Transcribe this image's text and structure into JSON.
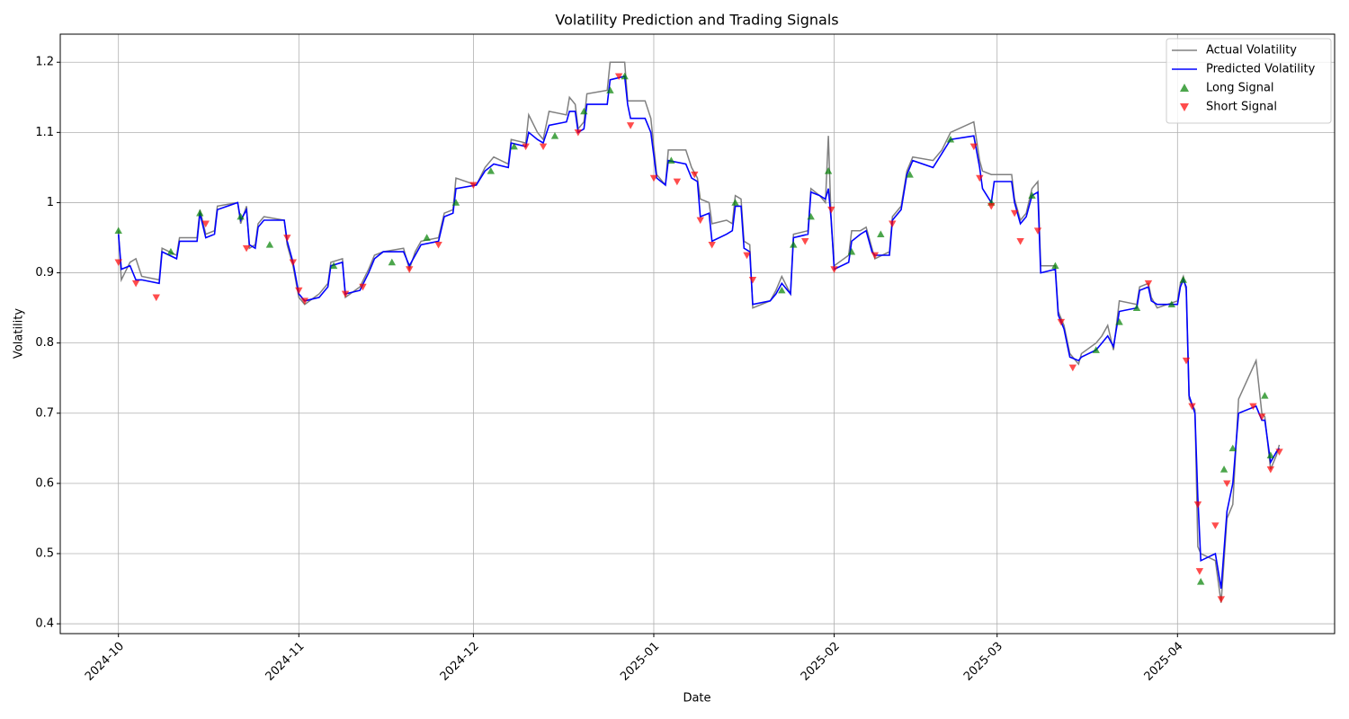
{
  "chart_data": {
    "type": "line",
    "title": "Volatility Prediction and Trading Signals",
    "x_label": "Date",
    "y_label": "Volatility",
    "xlim": [
      -10,
      209
    ],
    "ylim": [
      0.386,
      1.24
    ],
    "xticks": [
      {
        "value": 0,
        "label": "2024-10"
      },
      {
        "value": 31,
        "label": "2024-11"
      },
      {
        "value": 61,
        "label": "2024-12"
      },
      {
        "value": 92,
        "label": "2025-01"
      },
      {
        "value": 123,
        "label": "2025-02"
      },
      {
        "value": 151,
        "label": "2025-03"
      },
      {
        "value": 182,
        "label": "2025-04"
      }
    ],
    "yticks": [
      0.4,
      0.5,
      0.6,
      0.7,
      0.8,
      0.9,
      1.0,
      1.1,
      1.2
    ],
    "grid": true,
    "legend": "upper right",
    "series": [
      {
        "name": "Actual Volatility",
        "kind": "line",
        "color": "#808080",
        "x": [
          0,
          0.5,
          2,
          3,
          4,
          7,
          7.5,
          10,
          10.5,
          13.5,
          14,
          15,
          16.5,
          17,
          20.5,
          21,
          22,
          22.5,
          23.5,
          24,
          25,
          28.5,
          29,
          30,
          31,
          32,
          34.5,
          36,
          36.5,
          38.5,
          39,
          41.5,
          43,
          44,
          45.5,
          49,
          50,
          51,
          52,
          55,
          56,
          57.5,
          58,
          61.5,
          63,
          64.5,
          67,
          67.5,
          70,
          70.5,
          72,
          73,
          74,
          77,
          77.5,
          78.5,
          79,
          80,
          80.5,
          84,
          84.5,
          87,
          87.5,
          88,
          90.5,
          91.5,
          92.5,
          94,
          94.5,
          97.5,
          98.5,
          99.5,
          100,
          101.5,
          102,
          104.5,
          105.5,
          106,
          107,
          107.5,
          108.5,
          109,
          112,
          113,
          114,
          115.5,
          116,
          118.5,
          119,
          120.5,
          121.5,
          122,
          122.5,
          123,
          125.5,
          126,
          127.5,
          128.5,
          129.5,
          130,
          132.5,
          133,
          134.5,
          135.5,
          136.5,
          140,
          141.5,
          143,
          147,
          148,
          148.5,
          150,
          150.5,
          153.5,
          154,
          155,
          156,
          157,
          158,
          158.5,
          161,
          161.5,
          162.5,
          163.5,
          165,
          165.5,
          168,
          169,
          170,
          171,
          172,
          175,
          175.5,
          177,
          177.5,
          178.5,
          182,
          182.5,
          183,
          183.5,
          184,
          185,
          185.5,
          186,
          188.5,
          189.5,
          190.5,
          191.5,
          192.5,
          195.5,
          196.5,
          197,
          198,
          199,
          199.5
        ],
        "values": [
          0.96,
          0.89,
          0.915,
          0.92,
          0.895,
          0.89,
          0.935,
          0.925,
          0.95,
          0.95,
          0.99,
          0.955,
          0.96,
          0.995,
          1.0,
          0.97,
          0.995,
          0.935,
          0.94,
          0.97,
          0.98,
          0.975,
          0.94,
          0.91,
          0.865,
          0.855,
          0.87,
          0.885,
          0.915,
          0.92,
          0.865,
          0.88,
          0.905,
          0.925,
          0.93,
          0.935,
          0.905,
          0.93,
          0.945,
          0.95,
          0.985,
          0.99,
          1.035,
          1.025,
          1.05,
          1.065,
          1.055,
          1.09,
          1.085,
          1.125,
          1.1,
          1.09,
          1.13,
          1.125,
          1.15,
          1.14,
          1.105,
          1.115,
          1.155,
          1.16,
          1.2,
          1.2,
          1.145,
          1.145,
          1.145,
          1.12,
          1.04,
          1.025,
          1.075,
          1.075,
          1.05,
          1.035,
          1.005,
          1.0,
          0.97,
          0.975,
          0.97,
          1.01,
          1.005,
          0.945,
          0.94,
          0.85,
          0.86,
          0.875,
          0.895,
          0.87,
          0.955,
          0.96,
          1.02,
          1.01,
          1.0,
          1.095,
          0.97,
          0.91,
          0.925,
          0.96,
          0.96,
          0.965,
          0.935,
          0.92,
          0.93,
          0.98,
          0.995,
          1.045,
          1.065,
          1.06,
          1.075,
          1.1,
          1.115,
          1.06,
          1.045,
          1.04,
          1.04,
          1.04,
          1.005,
          0.975,
          0.985,
          1.02,
          1.03,
          0.91,
          0.91,
          0.845,
          0.825,
          0.785,
          0.77,
          0.785,
          0.8,
          0.81,
          0.825,
          0.79,
          0.86,
          0.855,
          0.88,
          0.885,
          0.865,
          0.85,
          0.86,
          0.885,
          0.895,
          0.875,
          0.72,
          0.705,
          0.51,
          0.5,
          0.49,
          0.43,
          0.55,
          0.57,
          0.72,
          0.775,
          0.7,
          0.695,
          0.62,
          0.64,
          0.655
        ]
      },
      {
        "name": "Predicted Volatility",
        "kind": "line",
        "color": "#0000ff",
        "x": [
          0,
          0.5,
          2,
          3,
          4,
          7,
          7.5,
          10,
          10.5,
          13.5,
          14,
          15,
          16.5,
          17,
          20.5,
          21,
          22,
          22.5,
          23.5,
          24,
          25,
          28.5,
          29,
          30,
          31,
          32,
          34.5,
          36,
          36.5,
          38.5,
          39,
          41.5,
          43,
          44,
          45.5,
          49,
          50,
          51,
          52,
          55,
          56,
          57.5,
          58,
          61.5,
          63,
          64.5,
          67,
          67.5,
          70,
          70.5,
          72,
          73,
          74,
          77,
          77.5,
          78.5,
          79,
          80,
          80.5,
          84,
          84.5,
          87,
          87.5,
          88,
          90.5,
          91.5,
          92.5,
          94,
          94.5,
          97.5,
          98.5,
          99.5,
          100,
          101.5,
          102,
          104.5,
          105.5,
          106,
          107,
          107.5,
          108.5,
          109,
          112,
          113,
          114,
          115.5,
          116,
          118.5,
          119,
          120.5,
          121.5,
          122,
          122.5,
          123,
          125.5,
          126,
          127.5,
          128.5,
          129.5,
          130,
          132.5,
          133,
          134.5,
          135.5,
          136.5,
          140,
          141.5,
          143,
          147,
          148,
          148.5,
          150,
          150.5,
          153.5,
          154,
          155,
          156,
          157,
          158,
          158.5,
          161,
          161.5,
          162.5,
          163.5,
          165,
          165.5,
          168,
          169,
          170,
          171,
          172,
          175,
          175.5,
          177,
          177.5,
          178.5,
          182,
          182.5,
          183,
          183.5,
          184,
          185,
          185.5,
          186,
          188.5,
          189.5,
          190.5,
          191.5,
          192.5,
          195.5,
          196.5,
          197,
          198,
          199,
          199.5
        ],
        "values": [
          0.955,
          0.905,
          0.91,
          0.89,
          0.89,
          0.885,
          0.93,
          0.92,
          0.945,
          0.945,
          0.985,
          0.95,
          0.955,
          0.99,
          1.0,
          0.975,
          0.99,
          0.94,
          0.935,
          0.965,
          0.975,
          0.975,
          0.945,
          0.915,
          0.87,
          0.86,
          0.865,
          0.88,
          0.91,
          0.915,
          0.87,
          0.875,
          0.9,
          0.92,
          0.93,
          0.93,
          0.91,
          0.925,
          0.94,
          0.945,
          0.98,
          0.985,
          1.02,
          1.025,
          1.045,
          1.055,
          1.05,
          1.085,
          1.08,
          1.1,
          1.09,
          1.085,
          1.11,
          1.115,
          1.13,
          1.13,
          1.1,
          1.105,
          1.14,
          1.14,
          1.175,
          1.18,
          1.14,
          1.12,
          1.12,
          1.1,
          1.035,
          1.025,
          1.06,
          1.055,
          1.035,
          1.03,
          0.98,
          0.985,
          0.945,
          0.955,
          0.96,
          0.995,
          0.995,
          0.935,
          0.93,
          0.855,
          0.86,
          0.87,
          0.885,
          0.87,
          0.95,
          0.955,
          1.015,
          1.01,
          1.005,
          1.02,
          0.975,
          0.905,
          0.915,
          0.945,
          0.955,
          0.96,
          0.93,
          0.925,
          0.925,
          0.975,
          0.99,
          1.04,
          1.06,
          1.05,
          1.07,
          1.09,
          1.095,
          1.05,
          1.02,
          1.0,
          1.03,
          1.03,
          1.0,
          0.97,
          0.98,
          1.01,
          1.015,
          0.9,
          0.905,
          0.84,
          0.82,
          0.78,
          0.775,
          0.78,
          0.79,
          0.8,
          0.81,
          0.795,
          0.845,
          0.85,
          0.875,
          0.88,
          0.86,
          0.855,
          0.855,
          0.88,
          0.89,
          0.88,
          0.725,
          0.7,
          0.58,
          0.49,
          0.5,
          0.45,
          0.56,
          0.6,
          0.7,
          0.71,
          0.69,
          0.69,
          0.63,
          0.645,
          0.65
        ]
      },
      {
        "name": "Long Signal",
        "kind": "scatter",
        "marker": "up",
        "color": "#008000",
        "x": [
          0,
          9,
          14,
          21,
          26,
          37,
          47,
          53,
          58,
          64,
          68,
          75,
          80,
          84.5,
          87,
          95,
          106,
          114,
          116,
          119,
          122,
          126,
          131,
          136,
          143,
          150,
          157,
          161,
          168,
          172,
          175,
          181,
          183,
          186,
          190,
          191.5,
          197,
          198
        ],
        "values": [
          0.96,
          0.93,
          0.985,
          0.98,
          0.94,
          0.91,
          0.915,
          0.95,
          1.0,
          1.045,
          1.08,
          1.095,
          1.13,
          1.16,
          1.18,
          1.06,
          1.0,
          0.875,
          0.94,
          0.98,
          1.045,
          0.93,
          0.955,
          1.04,
          1.09,
          1.0,
          1.01,
          0.91,
          0.79,
          0.83,
          0.85,
          0.855,
          0.89,
          0.46,
          0.62,
          0.65,
          0.725,
          0.64
        ]
      },
      {
        "name": "Short Signal",
        "kind": "scatter",
        "marker": "down",
        "color": "#ff0000",
        "x": [
          0,
          3,
          6.5,
          15,
          22,
          29,
          30,
          31,
          32,
          39,
          42,
          50,
          55,
          61,
          70,
          73,
          79,
          86,
          88,
          92,
          96,
          99,
          100,
          102,
          108,
          109,
          118,
          122.5,
          123,
          130,
          133,
          147,
          148,
          150,
          154,
          155,
          158,
          162,
          164,
          177,
          183.5,
          184.5,
          185.5,
          185.8,
          188.5,
          189.5,
          190.5,
          195,
          196.5,
          198,
          199.5
        ],
        "values": [
          0.915,
          0.885,
          0.865,
          0.97,
          0.935,
          0.95,
          0.915,
          0.875,
          0.86,
          0.87,
          0.88,
          0.905,
          0.94,
          1.025,
          1.08,
          1.08,
          1.1,
          1.18,
          1.11,
          1.035,
          1.03,
          1.04,
          0.975,
          0.94,
          0.925,
          0.89,
          0.945,
          0.99,
          0.905,
          0.925,
          0.97,
          1.08,
          1.035,
          0.995,
          0.985,
          0.945,
          0.96,
          0.83,
          0.765,
          0.885,
          0.775,
          0.71,
          0.57,
          0.475,
          0.54,
          0.435,
          0.6,
          0.71,
          0.695,
          0.62,
          0.645
        ]
      }
    ]
  }
}
